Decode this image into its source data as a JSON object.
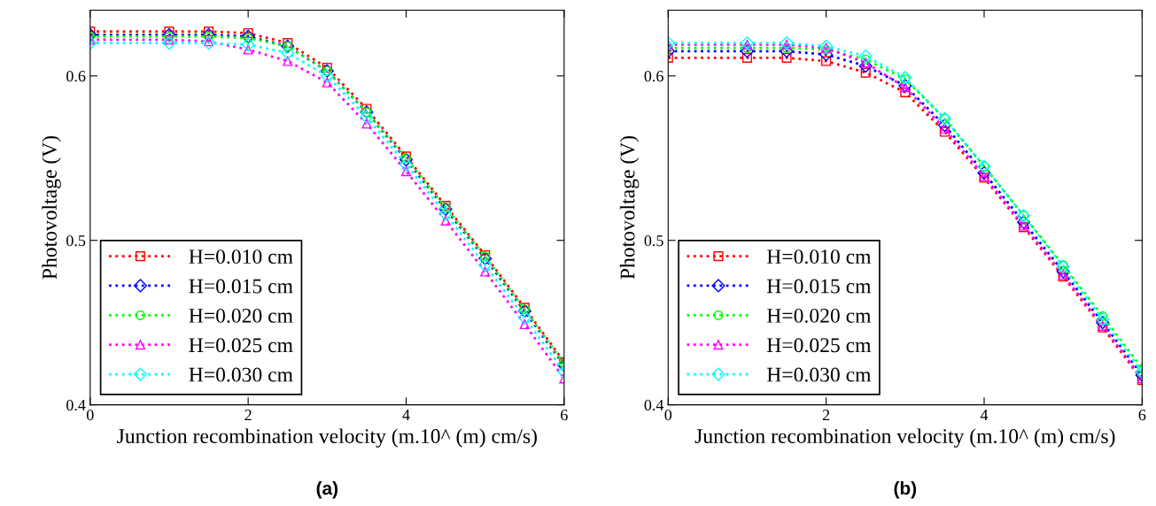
{
  "chart_data": [
    {
      "type": "line",
      "xlabel": "Junction recombination velocity (m.10^ (m) cm/s)",
      "ylabel": "Photovoltage (V)",
      "annotations": [
        "(a)"
      ],
      "x": [
        0,
        1,
        1.5,
        2,
        2.5,
        3,
        3.5,
        4,
        4.5,
        5,
        5.5,
        6
      ],
      "xlim": [
        0,
        6
      ],
      "xticks": [
        0,
        2,
        4,
        6
      ],
      "ylim": [
        0.4,
        0.64
      ],
      "yticks": [
        0.4,
        0.5,
        0.6
      ],
      "legend": "bottom left",
      "grid": false,
      "line_style": "dotted",
      "series": [
        {
          "name": "H=0.010 cm",
          "color": "#ff0000",
          "marker": "square",
          "values": [
            0.627,
            0.627,
            0.627,
            0.626,
            0.62,
            0.605,
            0.58,
            0.551,
            0.521,
            0.491,
            0.459,
            0.426
          ]
        },
        {
          "name": "H=0.015 cm",
          "color": "#0000ff",
          "marker": "diamond",
          "values": [
            0.625,
            0.625,
            0.625,
            0.624,
            0.618,
            0.603,
            0.578,
            0.549,
            0.519,
            0.489,
            0.457,
            0.424
          ]
        },
        {
          "name": "H=0.020 cm",
          "color": "#00ff00",
          "marker": "circle",
          "values": [
            0.624,
            0.624,
            0.624,
            0.623,
            0.618,
            0.603,
            0.578,
            0.55,
            0.52,
            0.49,
            0.458,
            0.425
          ]
        },
        {
          "name": "H=0.025 cm",
          "color": "#ff00ff",
          "marker": "triangle",
          "values": [
            0.622,
            0.622,
            0.621,
            0.616,
            0.609,
            0.596,
            0.571,
            0.542,
            0.512,
            0.481,
            0.449,
            0.416
          ]
        },
        {
          "name": "H=0.030 cm",
          "color": "#00ffff",
          "marker": "diamond",
          "values": [
            0.62,
            0.62,
            0.62,
            0.619,
            0.614,
            0.6,
            0.575,
            0.546,
            0.516,
            0.485,
            0.453,
            0.42
          ]
        }
      ]
    },
    {
      "type": "line",
      "xlabel": "Junction recombination velocity (m.10^ (m) cm/s)",
      "ylabel": "Photovoltage (V)",
      "annotations": [
        "(b)"
      ],
      "x": [
        0,
        1,
        1.5,
        2,
        2.5,
        3,
        3.5,
        4,
        4.5,
        5,
        5.5,
        6
      ],
      "xlim": [
        0,
        6
      ],
      "xticks": [
        0,
        2,
        4,
        6
      ],
      "ylim": [
        0.4,
        0.64
      ],
      "yticks": [
        0.4,
        0.5,
        0.6
      ],
      "legend": "bottom left",
      "grid": false,
      "line_style": "dotted",
      "series": [
        {
          "name": "H=0.010 cm",
          "color": "#ff0000",
          "marker": "square",
          "values": [
            0.611,
            0.611,
            0.611,
            0.609,
            0.602,
            0.59,
            0.566,
            0.538,
            0.508,
            0.478,
            0.447,
            0.415
          ]
        },
        {
          "name": "H=0.015 cm",
          "color": "#0000ff",
          "marker": "diamond",
          "values": [
            0.615,
            0.615,
            0.615,
            0.613,
            0.606,
            0.594,
            0.57,
            0.541,
            0.511,
            0.481,
            0.45,
            0.418
          ]
        },
        {
          "name": "H=0.020 cm",
          "color": "#00ff00",
          "marker": "circle",
          "values": [
            0.617,
            0.617,
            0.617,
            0.616,
            0.61,
            0.598,
            0.574,
            0.545,
            0.515,
            0.485,
            0.454,
            0.422
          ]
        },
        {
          "name": "H=0.025 cm",
          "color": "#ff00ff",
          "marker": "triangle",
          "values": [
            0.619,
            0.619,
            0.619,
            0.617,
            0.608,
            0.593,
            0.568,
            0.539,
            0.509,
            0.479,
            0.448,
            0.416
          ]
        },
        {
          "name": "H=0.030 cm",
          "color": "#00ffff",
          "marker": "diamond",
          "values": [
            0.62,
            0.62,
            0.62,
            0.618,
            0.612,
            0.599,
            0.574,
            0.545,
            0.515,
            0.484,
            0.452,
            0.42
          ]
        }
      ]
    }
  ]
}
